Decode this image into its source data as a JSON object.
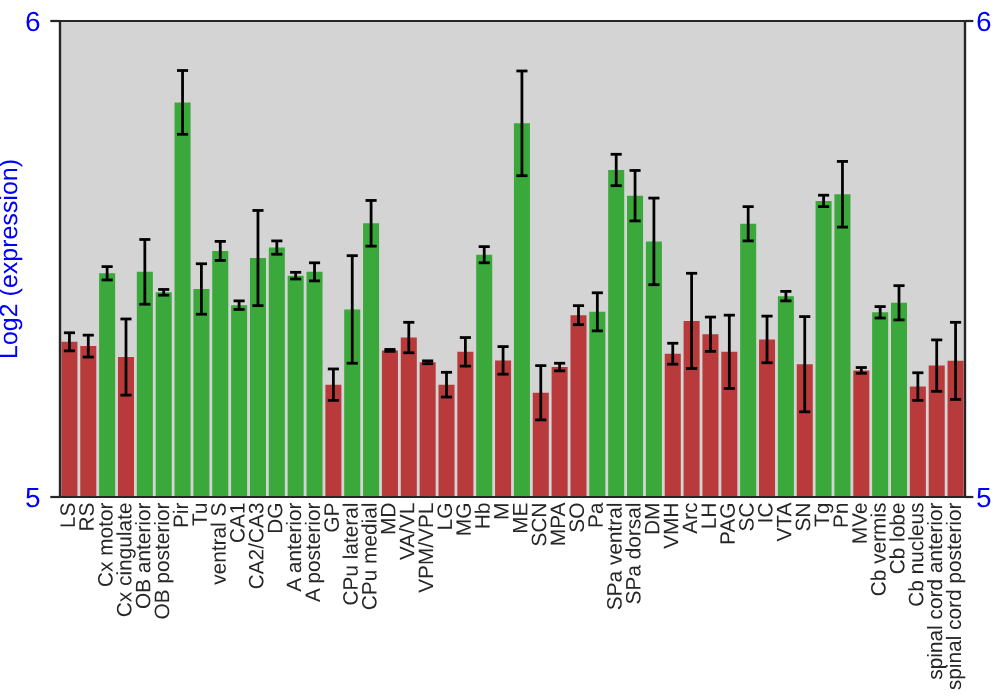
{
  "chart_data": {
    "type": "bar",
    "ylabel": "Log2 (expression)",
    "categories": [
      "LS",
      "RS",
      "Cx motor",
      "Cx cingulate",
      "OB anterior",
      "OB posterior",
      "Pir",
      "Tu",
      "ventral S",
      "CA1",
      "CA2/CA3",
      "DG",
      "A anterior",
      "A posterior",
      "GP",
      "CPu lateral",
      "CPu medial",
      "MD",
      "VA/VL",
      "VPM/VPL",
      "LG",
      "MG",
      "Hb",
      "M",
      "ME",
      "SCN",
      "MPA",
      "SO",
      "Pa",
      "SPa ventral",
      "SPa dorsal",
      "DM",
      "VMH",
      "Arc",
      "LH",
      "PAG",
      "SC",
      "IC",
      "VTA",
      "SN",
      "Tg",
      "Pn",
      "MVe",
      "Cb vermis",
      "Cb lobe",
      "Cb nucleus",
      "spinal cord anterior",
      "spinal cord posterior"
    ],
    "values": [
      5.326,
      5.317,
      5.47,
      5.294,
      5.473,
      5.43,
      5.829,
      5.437,
      5.517,
      5.403,
      5.502,
      5.524,
      5.465,
      5.473,
      5.236,
      5.394,
      5.575,
      5.308,
      5.335,
      5.283,
      5.236,
      5.305,
      5.509,
      5.287,
      5.785,
      5.219,
      5.273,
      5.382,
      5.389,
      5.687,
      5.633,
      5.537,
      5.301,
      5.37,
      5.342,
      5.305,
      5.574,
      5.331,
      5.422,
      5.279,
      5.622,
      5.636,
      5.266,
      5.388,
      5.408,
      5.232,
      5.276,
      5.286
    ],
    "errors": [
      0.019,
      0.023,
      0.014,
      0.08,
      0.068,
      0.006,
      0.067,
      0.053,
      0.02,
      0.009,
      0.1,
      0.014,
      0.007,
      0.019,
      0.033,
      0.113,
      0.048,
      0.002,
      0.032,
      0.003,
      0.026,
      0.03,
      0.017,
      0.029,
      0.11,
      0.057,
      0.008,
      0.02,
      0.04,
      0.033,
      0.053,
      0.091,
      0.022,
      0.1,
      0.036,
      0.077,
      0.036,
      0.049,
      0.01,
      0.1,
      0.012,
      0.069,
      0.006,
      0.012,
      0.036,
      0.029,
      0.054,
      0.081
    ],
    "colors": [
      "#b83a3a",
      "#b83a3a",
      "#3aa83a",
      "#b83a3a",
      "#3aa83a",
      "#3aa83a",
      "#3aa83a",
      "#3aa83a",
      "#3aa83a",
      "#3aa83a",
      "#3aa83a",
      "#3aa83a",
      "#3aa83a",
      "#3aa83a",
      "#b83a3a",
      "#3aa83a",
      "#3aa83a",
      "#b83a3a",
      "#b83a3a",
      "#b83a3a",
      "#b83a3a",
      "#b83a3a",
      "#3aa83a",
      "#b83a3a",
      "#3aa83a",
      "#b83a3a",
      "#b83a3a",
      "#b83a3a",
      "#3aa83a",
      "#3aa83a",
      "#3aa83a",
      "#3aa83a",
      "#b83a3a",
      "#b83a3a",
      "#b83a3a",
      "#b83a3a",
      "#3aa83a",
      "#b83a3a",
      "#3aa83a",
      "#b83a3a",
      "#3aa83a",
      "#3aa83a",
      "#b83a3a",
      "#3aa83a",
      "#3aa83a",
      "#b83a3a",
      "#b83a3a",
      "#b83a3a"
    ],
    "ylim": [
      5,
      6
    ],
    "yticks": [
      5,
      6
    ],
    "y2lim": [
      5,
      6
    ],
    "y2ticks": [
      5,
      6
    ],
    "grid": false,
    "legend": false
  }
}
